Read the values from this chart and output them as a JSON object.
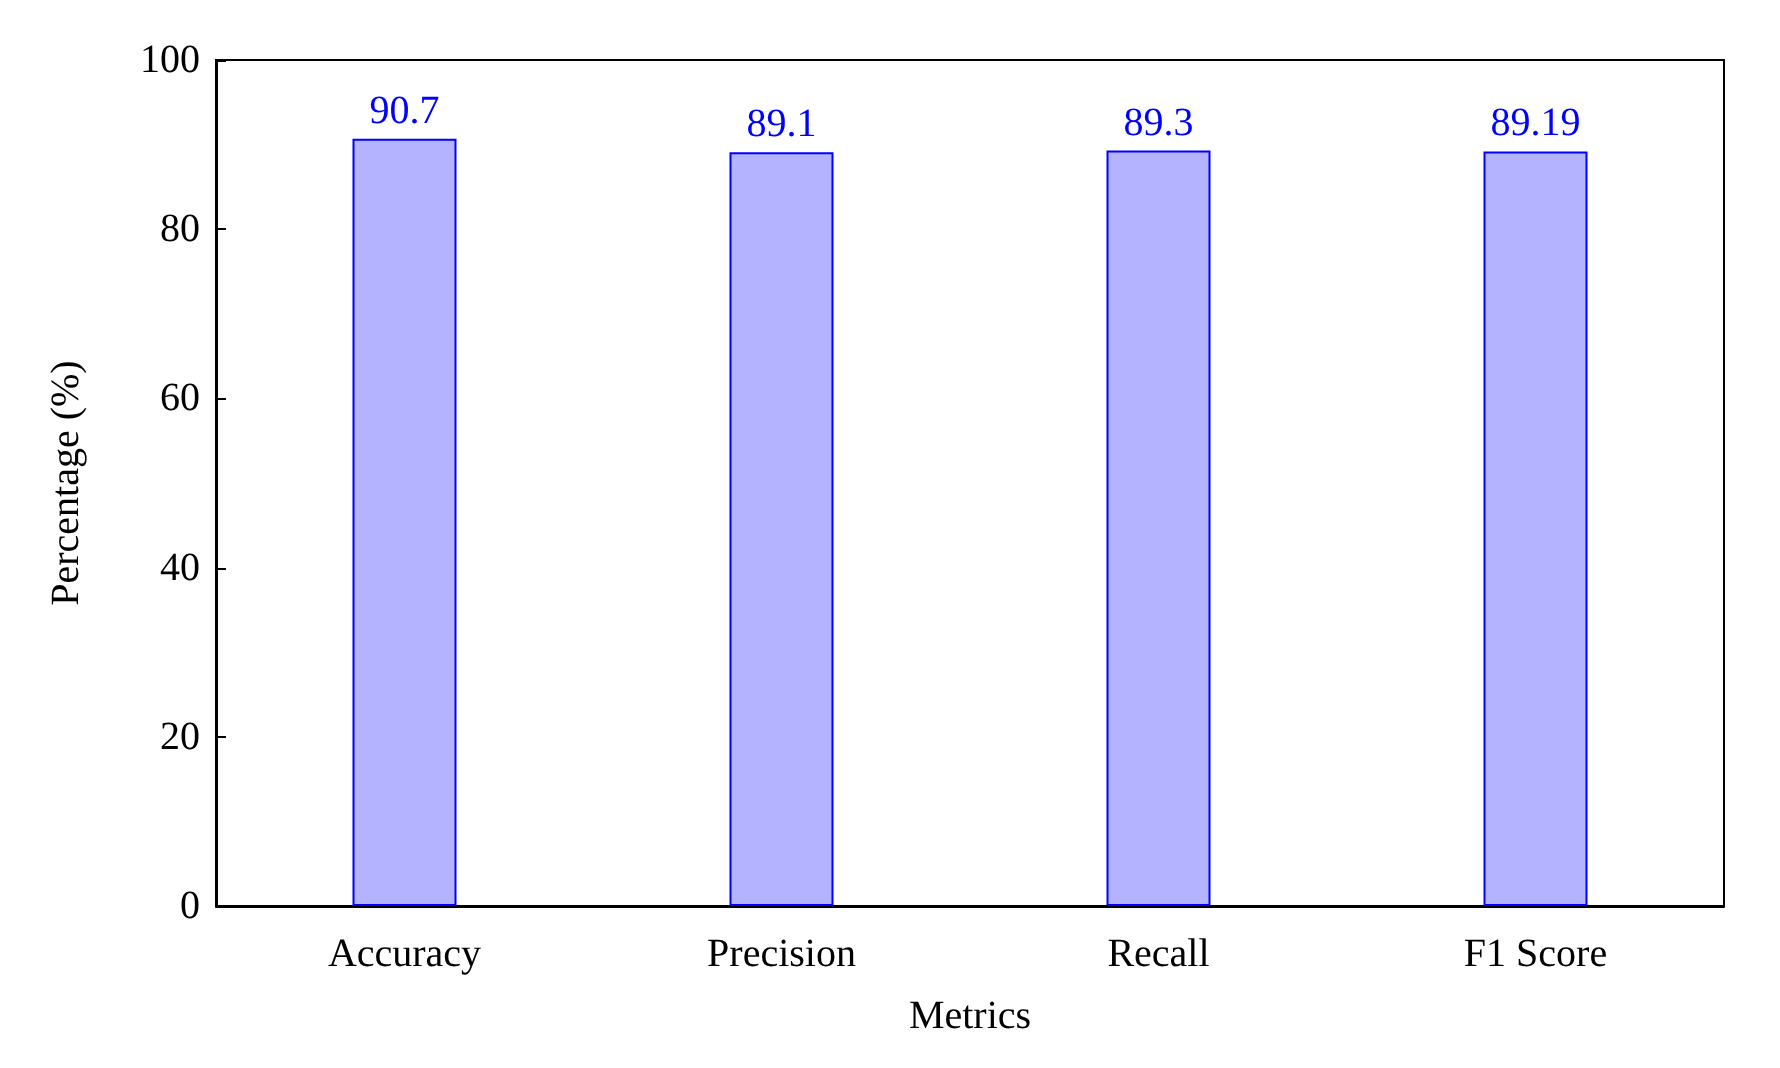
{
  "chart_data": {
    "type": "bar",
    "xlabel": "Metrics",
    "ylabel": "Percentage (%)",
    "categories": [
      "Accuracy",
      "Precision",
      "Recall",
      "F1 Score"
    ],
    "values": [
      90.7,
      89.1,
      89.3,
      89.19
    ],
    "color": "#b3b3ff",
    "ylim": [
      0,
      100
    ],
    "yticks": [
      0,
      20,
      40,
      60,
      80,
      100
    ],
    "data_labels": true
  }
}
